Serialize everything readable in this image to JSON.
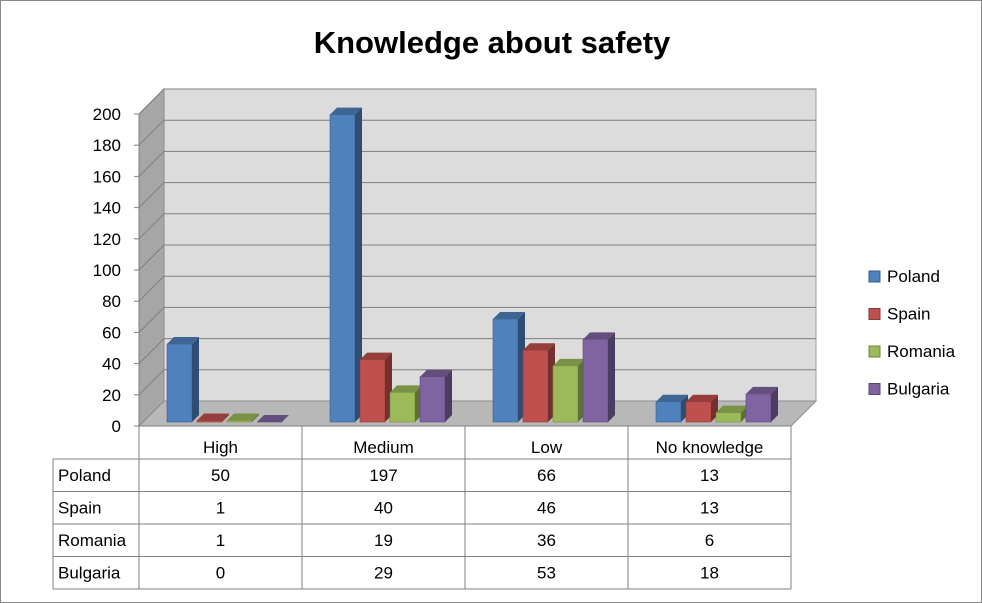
{
  "chart_data": {
    "type": "bar",
    "title": "Knowledge about safety",
    "categories": [
      "High",
      "Medium",
      "Low",
      "No knowledge"
    ],
    "series": [
      {
        "name": "Poland",
        "values": [
          50,
          197,
          66,
          13
        ],
        "color": "#4F81BD"
      },
      {
        "name": "Spain",
        "values": [
          1,
          40,
          46,
          13
        ],
        "color": "#C0504D"
      },
      {
        "name": "Romania",
        "values": [
          1,
          19,
          36,
          6
        ],
        "color": "#9BBB59"
      },
      {
        "name": "Bulgaria",
        "values": [
          0,
          29,
          53,
          18
        ],
        "color": "#8064A2"
      }
    ],
    "ylim": [
      0,
      200
    ],
    "yticks": [
      0,
      20,
      40,
      60,
      80,
      100,
      120,
      140,
      160,
      180,
      200
    ],
    "grid": true,
    "style": "3d-clustered-column",
    "legend": "right",
    "data_table": true
  },
  "colors": {
    "wall": "#DCDCDC",
    "side_wall": "#A6A6A6",
    "floor": "#B8B8B8",
    "gridline": "#7F7F7F",
    "table_border": "#7F7F7F",
    "text": "#000000"
  }
}
